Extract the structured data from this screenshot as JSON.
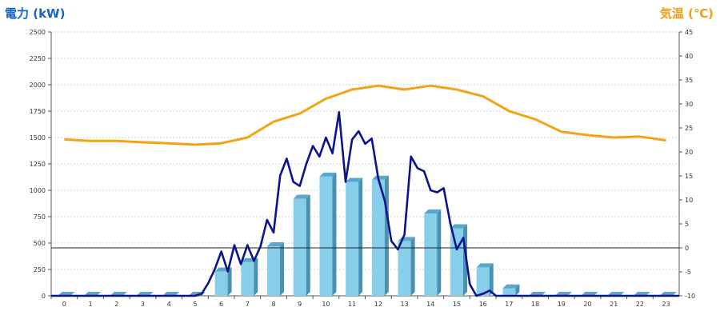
{
  "chart_data": {
    "type": "bar",
    "title": "",
    "ylabel": "電力 (kW)",
    "y2label": "気温 (℃)",
    "categories": [
      "0",
      "1",
      "2",
      "3",
      "4",
      "5",
      "6",
      "7",
      "8",
      "9",
      "10",
      "11",
      "12",
      "13",
      "14",
      "15",
      "16",
      "17",
      "18",
      "19",
      "20",
      "21",
      "22",
      "23"
    ],
    "ylim": [
      0,
      2500
    ],
    "y2lim": [
      -10,
      45
    ],
    "y_ticks": [
      "0",
      "250",
      "500",
      "750",
      "1000",
      "1250",
      "1500",
      "1750",
      "2000",
      "2250",
      "2500"
    ],
    "y2_ticks": [
      "-10",
      "-5",
      "0",
      "5",
      "10",
      "15",
      "20",
      "25",
      "30",
      "35",
      "40",
      "45"
    ],
    "grid": true,
    "series": [
      {
        "type": "bar",
        "axis": "left",
        "values": [
          0,
          0,
          0,
          0,
          0,
          0,
          230,
          320,
          470,
          920,
          1130,
          1080,
          1100,
          520,
          780,
          640,
          270,
          70,
          0,
          0,
          0,
          0,
          0,
          0
        ]
      },
      {
        "type": "line",
        "axis": "left",
        "x": [
          5.0,
          5.25,
          5.5,
          5.75,
          6.0,
          6.25,
          6.5,
          6.75,
          7.0,
          7.25,
          7.5,
          7.75,
          8.0,
          8.25,
          8.5,
          8.75,
          9.0,
          9.25,
          9.5,
          9.75,
          10.0,
          10.25,
          10.5,
          10.75,
          11.0,
          11.25,
          11.5,
          11.75,
          12.0,
          12.25,
          12.5,
          12.75,
          13.0,
          13.25,
          13.5,
          13.75,
          14.0,
          14.25,
          14.5,
          14.75,
          15.0,
          15.25,
          15.5,
          15.75,
          16.0,
          16.25,
          16.5,
          16.75,
          17.0,
          17.25
        ],
        "values": [
          0,
          20,
          120,
          250,
          420,
          230,
          480,
          300,
          480,
          330,
          470,
          720,
          600,
          1140,
          1300,
          1080,
          1040,
          1250,
          1420,
          1320,
          1500,
          1350,
          1740,
          1080,
          1480,
          1560,
          1440,
          1490,
          1110,
          900,
          520,
          440,
          580,
          1320,
          1210,
          1180,
          1000,
          980,
          1020,
          690,
          440,
          550,
          110,
          0,
          20,
          50,
          0,
          0,
          0,
          0
        ]
      },
      {
        "type": "line",
        "axis": "right",
        "x": [
          0,
          1,
          2,
          3,
          4,
          5,
          6,
          7,
          8,
          9,
          10,
          11,
          12,
          13,
          14,
          15,
          16,
          17,
          18,
          19,
          20,
          21,
          22,
          23
        ],
        "values": [
          22.6,
          22.3,
          22.3,
          22.0,
          21.8,
          21.5,
          21.8,
          23.0,
          26.3,
          28.0,
          31.1,
          33.0,
          33.8,
          33.0,
          33.8,
          33.0,
          31.6,
          28.5,
          26.8,
          24.2,
          23.5,
          23.0,
          23.2,
          22.4
        ]
      }
    ]
  }
}
